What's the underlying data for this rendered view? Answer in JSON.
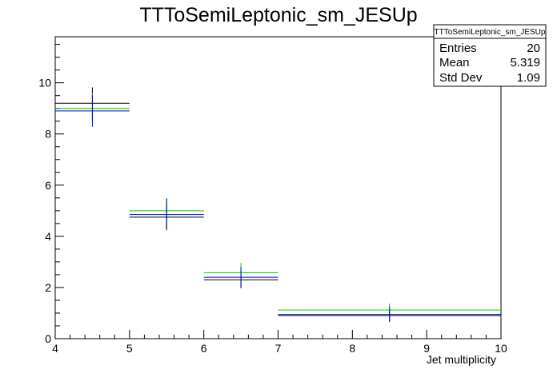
{
  "chart_data": {
    "type": "histogram",
    "title": "TTToSemiLeptonic_sm_JESUp",
    "xlabel": "Jet multiplicity",
    "ylabel": "",
    "xlim": [
      4,
      10
    ],
    "ylim": [
      0,
      11.8
    ],
    "x_ticks": [
      4,
      5,
      6,
      7,
      8,
      9,
      10
    ],
    "y_ticks": [
      0,
      2,
      4,
      6,
      8,
      10
    ],
    "bins": [
      [
        4,
        5
      ],
      [
        5,
        6
      ],
      [
        6,
        7
      ],
      [
        7,
        10
      ]
    ],
    "series": [
      {
        "color": "#000000",
        "values": [
          9.2,
          4.75,
          2.3,
          0.9
        ],
        "errors": [
          0.62,
          0.45,
          0.33,
          0.22
        ]
      },
      {
        "color": "#00cc00",
        "values": [
          9.0,
          5.0,
          2.58,
          1.12
        ],
        "errors": [
          0.6,
          0.5,
          0.38,
          0.25
        ]
      },
      {
        "color": "#0000cc",
        "values": [
          8.9,
          4.85,
          2.4,
          0.95
        ],
        "errors": [
          0.62,
          0.62,
          0.4,
          0.3
        ]
      }
    ],
    "stats_box": {
      "title": "TTToSemiLeptonic_sm_JESUp",
      "rows": [
        {
          "label": "Entries",
          "value": "20"
        },
        {
          "label": "Mean",
          "value": "5.319"
        },
        {
          "label": "Std Dev",
          "value": "1.09"
        }
      ]
    }
  }
}
